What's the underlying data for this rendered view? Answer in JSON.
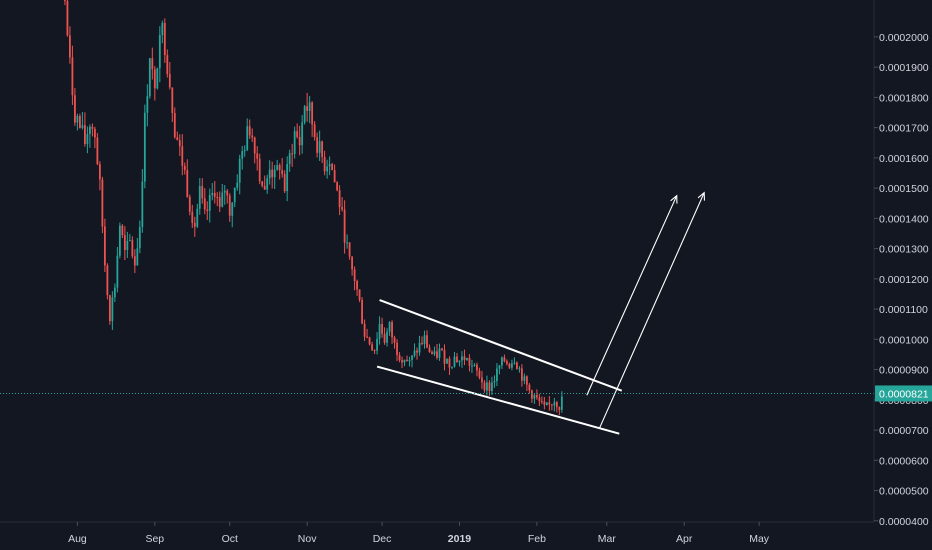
{
  "chart_data": {
    "type": "candlestick",
    "pair": "",
    "y_ticks": [
      4e-05,
      5e-05,
      6e-05,
      7e-05,
      8e-05,
      9e-05,
      0.0001,
      0.00011,
      0.00012,
      0.00013,
      0.00014,
      0.00015,
      0.00016,
      0.00017,
      0.00018,
      0.00019,
      0.0002
    ],
    "y_tick_labels": [
      "0.0000400",
      "0.0000500",
      "0.0000600",
      "0.0000700",
      "0.0000800",
      "0.0000900",
      "0.0001000",
      "0.0001100",
      "0.0001200",
      "0.0001300",
      "0.0001400",
      "0.0001500",
      "0.0001600",
      "0.0001700",
      "0.0001800",
      "0.0001900",
      "0.0002000"
    ],
    "ylim": [
      3.96e-05,
      0.0002122
    ],
    "x_ticks": [
      {
        "label": "Aug",
        "date": "2018-08-01"
      },
      {
        "label": "Sep",
        "date": "2018-09-01"
      },
      {
        "label": "Oct",
        "date": "2018-10-01"
      },
      {
        "label": "Nov",
        "date": "2018-11-01"
      },
      {
        "label": "Dec",
        "date": "2018-12-01"
      },
      {
        "label": "2019",
        "date": "2019-01-01",
        "bold": true
      },
      {
        "label": "Feb",
        "date": "2019-02-01"
      },
      {
        "label": "Mar",
        "date": "2019-03-01"
      },
      {
        "label": "Apr",
        "date": "2019-04-01"
      },
      {
        "label": "May",
        "date": "2019-05-01"
      }
    ],
    "xlim": [
      "2018-07-01",
      "2019-06-16"
    ],
    "last_price": 8.21e-05,
    "last_price_label": "0.0000821",
    "price_path": [
      [
        "2018-07-27",
        0.000212
      ],
      [
        "2018-07-29",
        0.00019
      ],
      [
        "2018-07-31",
        0.000175
      ],
      [
        "2018-08-02",
        0.00017
      ],
      [
        "2018-08-04",
        0.000165
      ],
      [
        "2018-08-06",
        0.000172
      ],
      [
        "2018-08-08",
        0.000168
      ],
      [
        "2018-08-10",
        0.00015
      ],
      [
        "2018-08-12",
        0.000125
      ],
      [
        "2018-08-14",
        0.000108
      ],
      [
        "2018-08-16",
        0.000118
      ],
      [
        "2018-08-18",
        0.000138
      ],
      [
        "2018-08-20",
        0.000128
      ],
      [
        "2018-08-22",
        0.000132
      ],
      [
        "2018-08-24",
        0.000125
      ],
      [
        "2018-08-26",
        0.000138
      ],
      [
        "2018-08-28",
        0.000172
      ],
      [
        "2018-08-30",
        0.000195
      ],
      [
        "2018-09-01",
        0.00018
      ],
      [
        "2018-09-03",
        0.000205
      ],
      [
        "2018-09-05",
        0.000198
      ],
      [
        "2018-09-07",
        0.000185
      ],
      [
        "2018-09-09",
        0.00017
      ],
      [
        "2018-09-11",
        0.000162
      ],
      [
        "2018-09-13",
        0.000155
      ],
      [
        "2018-09-15",
        0.000145
      ],
      [
        "2018-09-17",
        0.000138
      ],
      [
        "2018-09-19",
        0.000148
      ],
      [
        "2018-09-21",
        0.00014
      ],
      [
        "2018-09-23",
        0.000145
      ],
      [
        "2018-09-25",
        0.00015
      ],
      [
        "2018-09-27",
        0.000142
      ],
      [
        "2018-09-29",
        0.00015
      ],
      [
        "2018-10-01",
        0.000143
      ],
      [
        "2018-10-03",
        0.00015
      ],
      [
        "2018-10-05",
        0.000158
      ],
      [
        "2018-10-07",
        0.000165
      ],
      [
        "2018-10-09",
        0.00017
      ],
      [
        "2018-10-11",
        0.000165
      ],
      [
        "2018-10-13",
        0.000155
      ],
      [
        "2018-10-15",
        0.000148
      ],
      [
        "2018-10-17",
        0.000158
      ],
      [
        "2018-10-19",
        0.000153
      ],
      [
        "2018-10-21",
        0.000158
      ],
      [
        "2018-10-23",
        0.00015
      ],
      [
        "2018-10-25",
        0.00016
      ],
      [
        "2018-10-27",
        0.000168
      ],
      [
        "2018-10-29",
        0.000165
      ],
      [
        "2018-10-31",
        0.000178
      ],
      [
        "2018-11-02",
        0.000175
      ],
      [
        "2018-11-04",
        0.000168
      ],
      [
        "2018-11-06",
        0.000162
      ],
      [
        "2018-11-08",
        0.000158
      ],
      [
        "2018-11-10",
        0.00016
      ],
      [
        "2018-11-12",
        0.000152
      ],
      [
        "2018-11-14",
        0.000145
      ],
      [
        "2018-11-16",
        0.000135
      ],
      [
        "2018-11-18",
        0.000125
      ],
      [
        "2018-11-20",
        0.00012
      ],
      [
        "2018-11-22",
        0.000112
      ],
      [
        "2018-11-24",
        0.000102
      ],
      [
        "2018-11-26",
        9.9e-05
      ],
      [
        "2018-11-28",
        9.7e-05
      ],
      [
        "2018-11-30",
        0.000105
      ],
      [
        "2018-12-02",
        0.0001
      ],
      [
        "2018-12-04",
        0.000104
      ],
      [
        "2018-12-06",
        9.8e-05
      ],
      [
        "2018-12-08",
        9.5e-05
      ],
      [
        "2018-12-10",
        9.4e-05
      ],
      [
        "2018-12-12",
        9.2e-05
      ],
      [
        "2018-12-14",
        9.5e-05
      ],
      [
        "2018-12-16",
        9.8e-05
      ],
      [
        "2018-12-18",
        0.0001
      ],
      [
        "2018-12-20",
        9.6e-05
      ],
      [
        "2018-12-22",
        9.4e-05
      ],
      [
        "2018-12-24",
        9.6e-05
      ],
      [
        "2018-12-26",
        9.4e-05
      ],
      [
        "2018-12-28",
        9.2e-05
      ],
      [
        "2018-12-30",
        9.4e-05
      ],
      [
        "2019-01-01",
        9.3e-05
      ],
      [
        "2019-01-03",
        9.4e-05
      ],
      [
        "2019-01-05",
        9.2e-05
      ],
      [
        "2019-01-07",
        9e-05
      ],
      [
        "2019-01-09",
        8.8e-05
      ],
      [
        "2019-01-11",
        8.5e-05
      ],
      [
        "2019-01-13",
        8.4e-05
      ],
      [
        "2019-01-15",
        8.7e-05
      ],
      [
        "2019-01-17",
        9.1e-05
      ],
      [
        "2019-01-19",
        9.3e-05
      ],
      [
        "2019-01-21",
        9.2e-05
      ],
      [
        "2019-01-23",
        9.4e-05
      ],
      [
        "2019-01-25",
        9e-05
      ],
      [
        "2019-01-27",
        8.6e-05
      ],
      [
        "2019-01-29",
        8.3e-05
      ],
      [
        "2019-01-31",
        8.1e-05
      ],
      [
        "2019-02-02",
        7.9e-05
      ],
      [
        "2019-02-04",
        7.7e-05
      ],
      [
        "2019-02-06",
        7.8e-05
      ],
      [
        "2019-02-08",
        8e-05
      ],
      [
        "2019-02-10",
        7.8e-05
      ],
      [
        "2019-02-12",
        8.2e-05
      ]
    ],
    "drawings": {
      "channel_upper": [
        [
          "2018-11-30",
          0.000113
        ],
        [
          "2019-03-07",
          8.3e-05
        ]
      ],
      "channel_lower": [
        [
          "2018-11-29",
          9.1e-05
        ],
        [
          "2019-03-06",
          6.88e-05
        ]
      ],
      "arrows": [
        [
          [
            "2019-02-21",
            8.15e-05
          ],
          [
            "2019-03-29",
            0.0001475
          ]
        ],
        [
          [
            "2019-02-26",
            7.05e-05
          ],
          [
            "2019-04-09",
            0.0001485
          ]
        ]
      ]
    },
    "colors": {
      "background": "#131722",
      "up": "#26a69a",
      "down": "#ef5350",
      "drawing": "#ffffff",
      "last_price": "#26a69a",
      "axis_text": "#d1d4dc"
    },
    "grid": false
  }
}
